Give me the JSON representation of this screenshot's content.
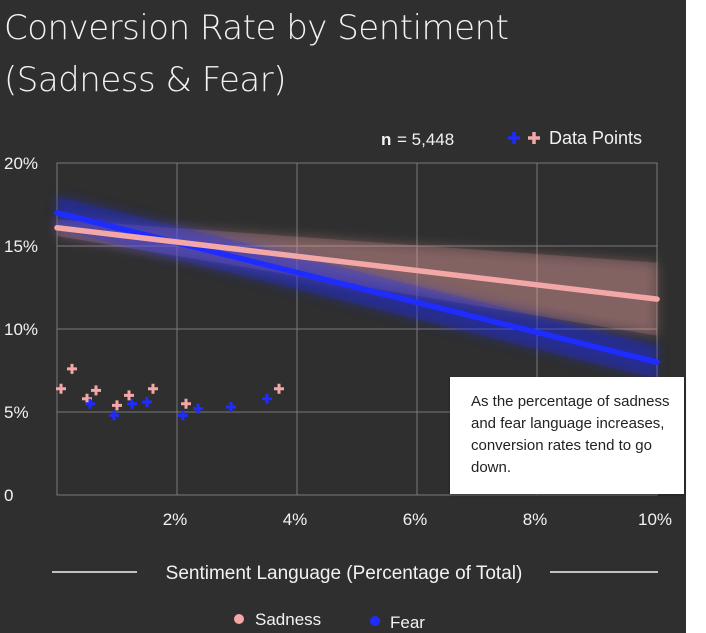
{
  "title_line1": "Conversion Rate by Sentiment",
  "title_line2": "(Sadness & Fear)",
  "n_label": "n",
  "n_value": "= 5,448",
  "points_legend_label": "Data Points",
  "annotation": "As the percentage of sadness and fear language increases, conversion rates tend to go down.",
  "colors": {
    "sadness": "#f4a7a7",
    "fear": "#1f2cff",
    "background": "#2f2f2f",
    "text": "#f2f2f2",
    "grid": "#7a7a7a"
  },
  "chart_data": {
    "type": "scatter",
    "title": "Conversion Rate by Sentiment (Sadness & Fear)",
    "xlabel": "Sentiment Language (Percentage of Total)",
    "ylabel": "",
    "xlim": [
      0,
      10
    ],
    "ylim": [
      0,
      20
    ],
    "x_ticks": [
      2,
      4,
      6,
      8,
      10
    ],
    "x_tick_labels": [
      "2%",
      "4%",
      "6%",
      "8%",
      "10%"
    ],
    "y_ticks": [
      0,
      5,
      10,
      15,
      20
    ],
    "y_tick_labels": [
      "0",
      "5%",
      "10%",
      "15%",
      "20%"
    ],
    "grid": true,
    "legend_position": "bottom",
    "series": [
      {
        "name": "Sadness",
        "color": "#f4a7a7",
        "marker": "plus",
        "points": [
          [
            0.0,
            6.4
          ],
          [
            0.25,
            7.6
          ],
          [
            0.5,
            5.8
          ],
          [
            0.65,
            6.3
          ],
          [
            1.0,
            5.4
          ],
          [
            1.2,
            6.0
          ],
          [
            1.6,
            6.4
          ],
          [
            2.15,
            5.5
          ],
          [
            3.7,
            6.4
          ]
        ],
        "trend": {
          "start": [
            0,
            16.1
          ],
          "end": [
            10,
            11.8
          ],
          "ci_start": [
            15.6,
            16.6
          ],
          "ci_end": [
            9.6,
            14.0
          ]
        }
      },
      {
        "name": "Fear",
        "color": "#1f2cff",
        "marker": "plus",
        "points": [
          [
            0.55,
            5.5
          ],
          [
            0.95,
            4.8
          ],
          [
            1.25,
            5.5
          ],
          [
            1.5,
            5.6
          ],
          [
            2.1,
            4.8
          ],
          [
            2.35,
            5.2
          ],
          [
            2.9,
            5.3
          ],
          [
            3.5,
            5.8
          ]
        ],
        "trend": {
          "start": [
            0,
            17.0
          ],
          "end": [
            10,
            8.0
          ],
          "ci_start": [
            16.0,
            18.0
          ],
          "ci_end": [
            7.0,
            9.0
          ]
        }
      }
    ]
  }
}
